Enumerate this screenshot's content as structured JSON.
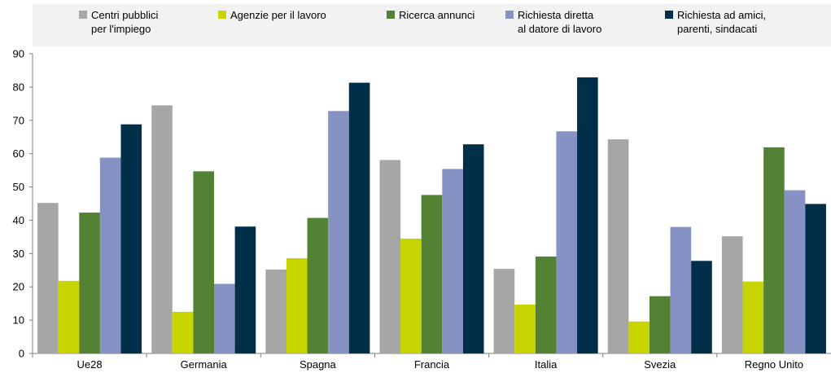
{
  "chart_data": {
    "type": "bar",
    "title": "",
    "xlabel": "",
    "ylabel": "",
    "ylim": [
      0,
      90
    ],
    "yticks": [
      "0",
      "10",
      "20",
      "30",
      "40",
      "50",
      "60",
      "70",
      "80",
      "90"
    ],
    "grid": false,
    "legend_position": "top",
    "categories": [
      "Ue28",
      "Germania",
      "Spagna",
      "Francia",
      "Italia",
      "Svezia",
      "Regno Unito"
    ],
    "series": [
      {
        "name": [
          "Centri pubblici",
          "per l'impiego"
        ],
        "color": "#a6a6a6",
        "values": [
          45.2,
          74.5,
          25.2,
          58.1,
          25.4,
          64.3,
          35.2
        ]
      },
      {
        "name": [
          "Agenzie per il lavoro"
        ],
        "color": "#c8d400",
        "values": [
          21.8,
          12.5,
          28.6,
          34.5,
          14.7,
          9.6,
          21.6
        ]
      },
      {
        "name": [
          "Ricerca annunci"
        ],
        "color": "#548235",
        "values": [
          42.3,
          54.7,
          40.7,
          47.6,
          29.1,
          17.2,
          61.9
        ]
      },
      {
        "name": [
          "Richiesta diretta",
          "al datore di lavoro"
        ],
        "color": "#8691c4",
        "values": [
          58.8,
          20.9,
          72.8,
          55.4,
          66.7,
          38.0,
          49.0
        ]
      },
      {
        "name": [
          "Richiesta ad amici,",
          "parenti, sindacati"
        ],
        "color": "#003049",
        "values": [
          68.8,
          38.1,
          81.3,
          62.8,
          82.9,
          27.8,
          44.9
        ]
      }
    ]
  }
}
